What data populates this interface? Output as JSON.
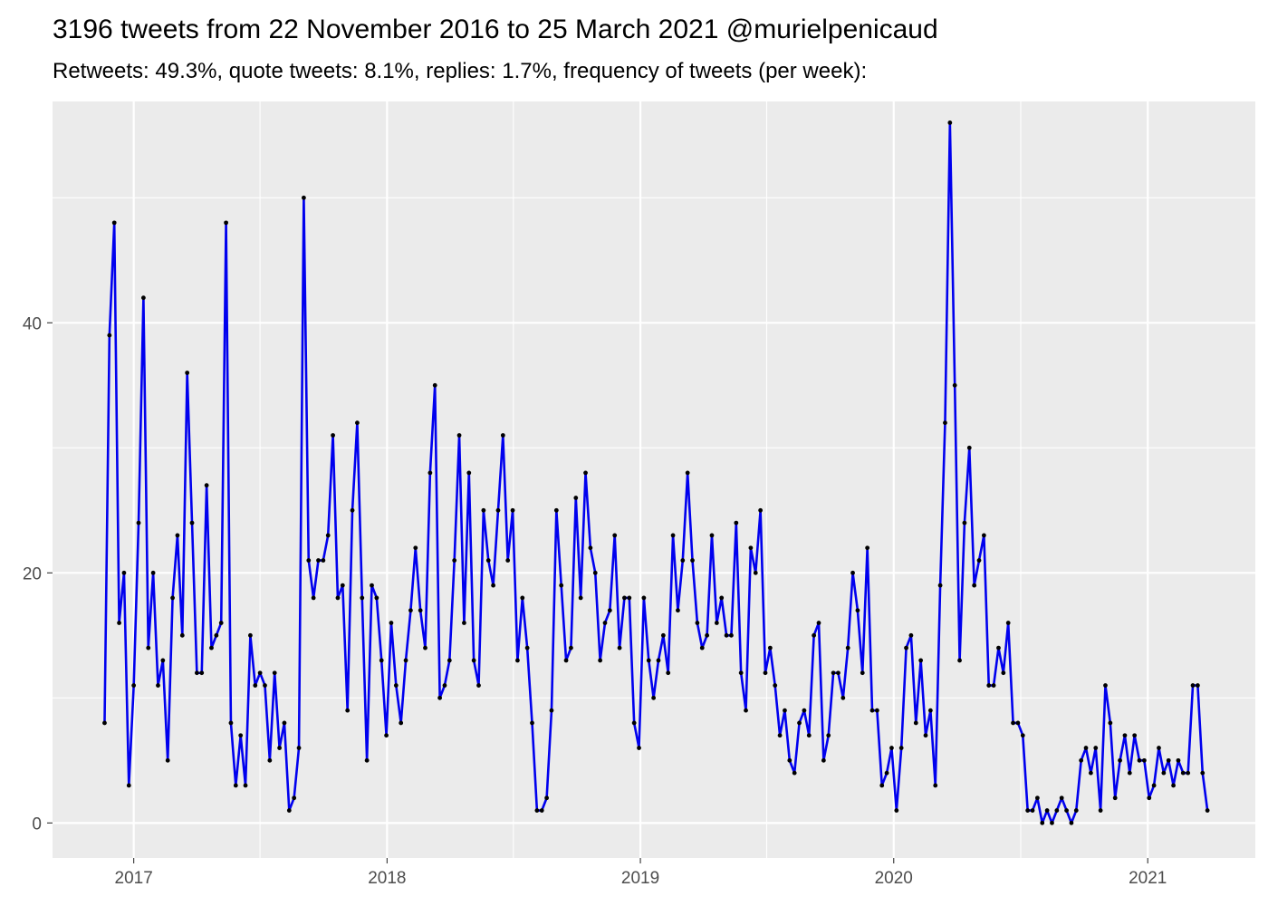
{
  "chart_data": {
    "type": "line",
    "title": "3196 tweets from 22 November 2016 to 25 March 2021 @murielpenicaud",
    "subtitle": "Retweets: 49.3%, quote tweets: 8.1%, replies: 1.7%, frequency of tweets (per week):",
    "xlabel": "",
    "ylabel": "",
    "x_axis": {
      "type": "date",
      "range": [
        "2016-09-06",
        "2021-06-05"
      ],
      "tick_labels": [
        "2017",
        "2018",
        "2019",
        "2020",
        "2021"
      ]
    },
    "y_axis": {
      "range": [
        -2.8,
        57.7
      ],
      "tick_labels": [
        "0",
        "20",
        "40"
      ],
      "ticks": [
        0,
        20,
        40
      ]
    },
    "grid": true,
    "legend": "none",
    "colors": {
      "line": "#0000ee",
      "point": "#000000",
      "panel": "#ebebeb",
      "grid": "#ffffff"
    },
    "series": [
      {
        "start_date": "2016-11-20",
        "interval_days": 7,
        "values": [
          8,
          39,
          48,
          16,
          20,
          3,
          11,
          24,
          42,
          14,
          20,
          11,
          13,
          5,
          18,
          23,
          15,
          36,
          24,
          12,
          12,
          27,
          14,
          15,
          16,
          48,
          8,
          3,
          7,
          3,
          15,
          11,
          12,
          11,
          5,
          12,
          6,
          8,
          1,
          2,
          6,
          50,
          21,
          18,
          21,
          21,
          23,
          31,
          18,
          19,
          9,
          25,
          32,
          18,
          5,
          19,
          18,
          13,
          7,
          16,
          11,
          8,
          13,
          17,
          22,
          17,
          14,
          28,
          35,
          10,
          11,
          13,
          21,
          31,
          16,
          28,
          13,
          11,
          25,
          21,
          19,
          25,
          31,
          21,
          25,
          13,
          18,
          14,
          8,
          1,
          1,
          2,
          9,
          25,
          19,
          13,
          14,
          26,
          18,
          28,
          22,
          20,
          13,
          16,
          17,
          23,
          14,
          18,
          18,
          8,
          6,
          18,
          13,
          10,
          13,
          15,
          12,
          23,
          17,
          21,
          28,
          21,
          16,
          14,
          15,
          23,
          16,
          18,
          15,
          15,
          24,
          12,
          9,
          22,
          20,
          25,
          12,
          14,
          11,
          7,
          9,
          5,
          4,
          8,
          9,
          7,
          15,
          16,
          5,
          7,
          12,
          12,
          10,
          14,
          20,
          17,
          12,
          22,
          9,
          9,
          3,
          4,
          6,
          1,
          6,
          14,
          15,
          8,
          13,
          7,
          9,
          3,
          19,
          32,
          56,
          35,
          13,
          24,
          30,
          19,
          21,
          23,
          11,
          11,
          14,
          12,
          16,
          8,
          8,
          7,
          1,
          1,
          2,
          0,
          1,
          0,
          1,
          2,
          1,
          0,
          1,
          5,
          6,
          4,
          6,
          1,
          11,
          8,
          2,
          5,
          7,
          4,
          7,
          5,
          5,
          2,
          3,
          6,
          4,
          5,
          3,
          5,
          4,
          4,
          11,
          11,
          4,
          1
        ]
      }
    ]
  }
}
